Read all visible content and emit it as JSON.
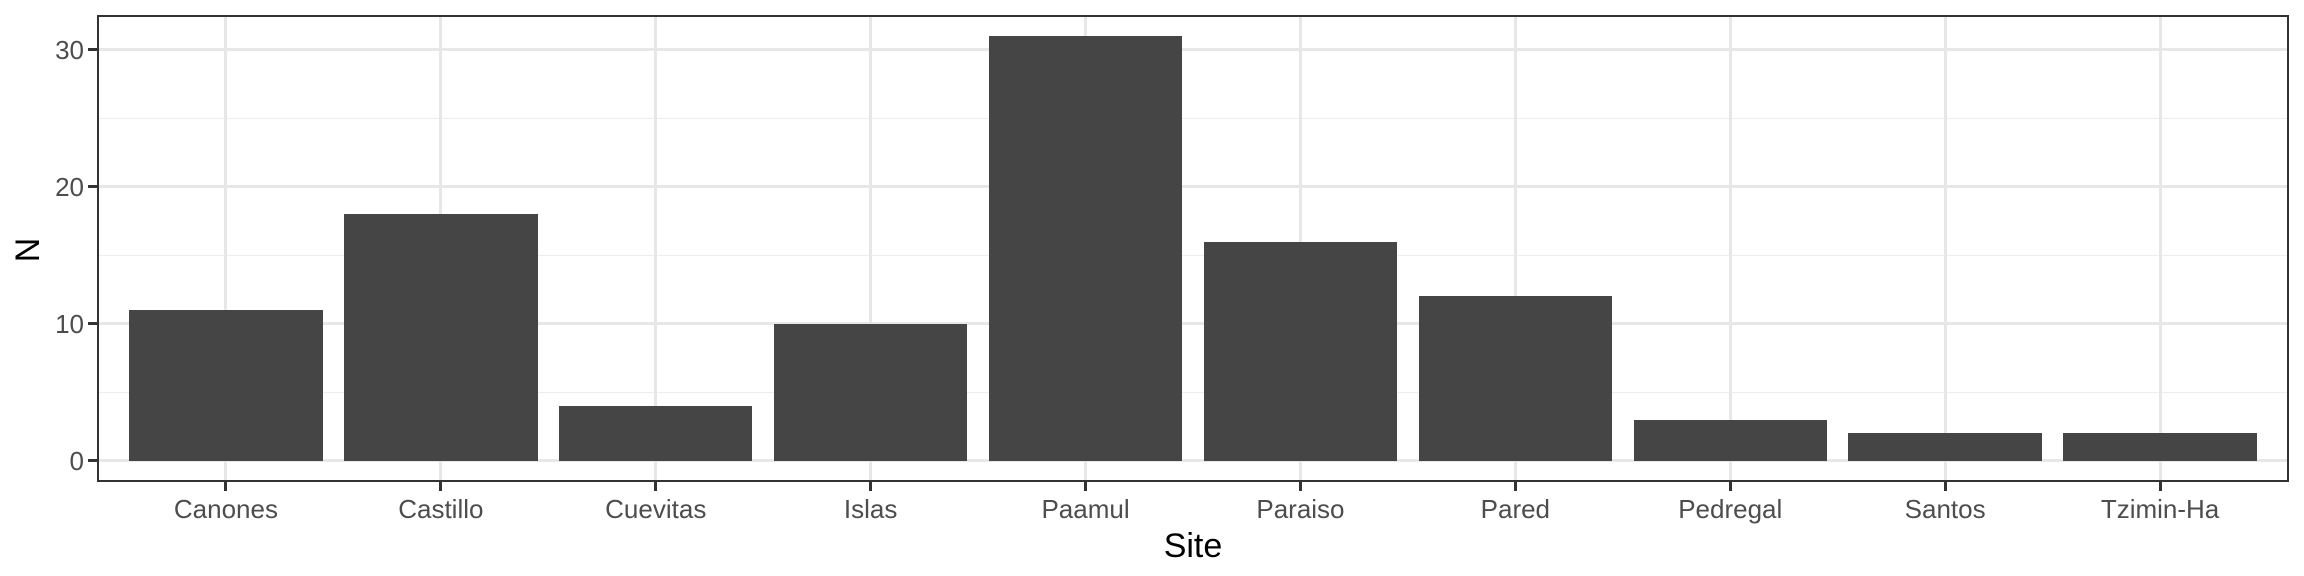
{
  "chart_data": {
    "type": "bar",
    "title": "",
    "xlabel": "Site",
    "ylabel": "N",
    "categories": [
      "Canones",
      "Castillo",
      "Cuevitas",
      "Islas",
      "Paamul",
      "Paraiso",
      "Pared",
      "Pedregal",
      "Santos",
      "Tzimin-Ha"
    ],
    "values": [
      11,
      18,
      4,
      10,
      31,
      16,
      12,
      3,
      2,
      2
    ],
    "y_ticks": [
      0,
      10,
      20,
      30
    ],
    "y_minor_ticks": [
      5,
      15,
      25
    ],
    "ylim": [
      -1.55,
      32.55
    ],
    "grid": "major horizontal and vertical at category centers, minor horizontal",
    "legend": "none",
    "bar_width_fraction": 0.9,
    "colors": {
      "bar_fill": "#454545",
      "panel_background": "#ffffff",
      "figure_background": "#ffffff",
      "grid_major": "#e7e7e7",
      "grid_minor": "#ededed",
      "panel_border": "#333333",
      "axis_tick": "#333333",
      "tick_label": "#4d4d4d",
      "axis_title": "#000000"
    }
  }
}
